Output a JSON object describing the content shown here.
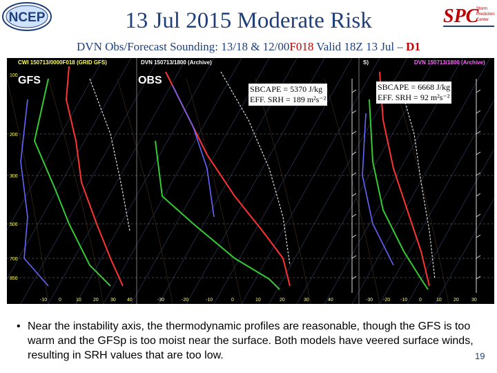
{
  "logos": {
    "left": "NCEP",
    "right": "Storm Prediction Center"
  },
  "title": "13 Jul 2015 Moderate Risk",
  "subtitle": {
    "prefix": "DVN Obs/Forecast Sounding: 13/18 & 12/00",
    "forecast_hour": "F018",
    "middle": " Valid 18Z 13 Jul – ",
    "day": "D1"
  },
  "colors": {
    "title": "#1f3f7a",
    "accent_red": "#c00000",
    "header_yellow": "#ffff66",
    "header_white": "#ffffff",
    "header_magenta": "#ff66ff"
  },
  "sounding": {
    "header_left": "CWI  150713/0000F018  (GRID GFS)",
    "header_mid": "DVN  150713/1800  (Archive)",
    "header_right": "DVN  150713/1800  (Archive)",
    "header_right_partial": "S)",
    "panel_labels": {
      "gfs": "GFS",
      "obs": "OBS"
    },
    "obs_stats": {
      "cape": "SBCAPE = 5370 J/kg",
      "srh": "EFF. SRH  = 189 m²s⁻²"
    },
    "model_stats": {
      "cape": "SBCAPE = 6668 J/kg",
      "srh": "EFF. SRH  = 92 m²s⁻²"
    },
    "pressure_levels": [
      "100",
      "200",
      "300",
      "500",
      "700",
      "850"
    ],
    "temp_ticks_left": [
      "-10",
      "0",
      "10",
      "20",
      "30",
      "40"
    ],
    "temp_ticks_mid": [
      "-30",
      "-20",
      "-10",
      "0",
      "10",
      "20",
      "30",
      "40"
    ],
    "temp_ticks_right": [
      "-30",
      "-20",
      "-10",
      "0",
      "10",
      "20",
      "30"
    ]
  },
  "bullet": "Near the instability axis, the thermodynamic profiles are reasonable, though the GFS is too warm and the GFSp is too moist near the surface.  Both models have veered surface winds, resulting in SRH values that are too low.",
  "page_number": "19"
}
